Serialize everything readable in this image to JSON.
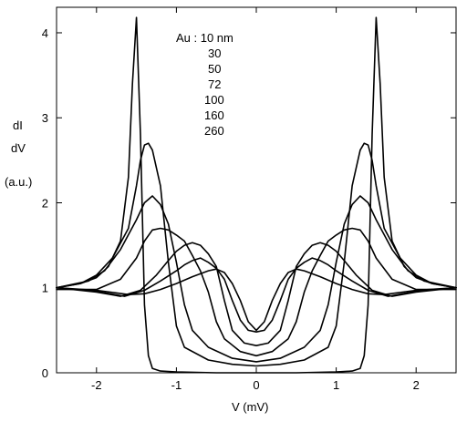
{
  "chart_data": {
    "type": "line",
    "xlabel": "V (mV)",
    "ylabel": [
      "dI",
      "dV",
      "(a.u.)"
    ],
    "xlim": [
      -2.5,
      2.5
    ],
    "ylim": [
      0,
      4.3
    ],
    "xticks": [
      -2,
      -1,
      0,
      1,
      2
    ],
    "yticks": [
      0,
      1,
      2,
      3,
      4
    ],
    "grid": false,
    "legend_title": "Au : 10 nm",
    "legend_entries": [
      "30",
      "50",
      "72",
      "100",
      "160",
      "260"
    ],
    "series": [
      {
        "name": "10 nm",
        "x": [
          0,
          0.5,
          1.0,
          1.2,
          1.3,
          1.35,
          1.4,
          1.45,
          1.5,
          1.55,
          1.6,
          1.7,
          1.85,
          2.0,
          2.2,
          2.5
        ],
        "y": [
          0.0,
          0.0,
          0.01,
          0.02,
          0.05,
          0.2,
          0.8,
          2.8,
          4.18,
          3.4,
          2.3,
          1.55,
          1.25,
          1.12,
          1.05,
          1.0
        ]
      },
      {
        "name": "30 nm",
        "x": [
          0,
          0.3,
          0.6,
          0.9,
          1.0,
          1.1,
          1.2,
          1.3,
          1.35,
          1.4,
          1.45,
          1.5,
          1.6,
          1.8,
          2.0,
          2.2,
          2.5
        ],
        "y": [
          0.08,
          0.1,
          0.15,
          0.3,
          0.55,
          1.3,
          2.2,
          2.62,
          2.7,
          2.68,
          2.5,
          2.2,
          1.7,
          1.35,
          1.15,
          1.05,
          1.0
        ]
      },
      {
        "name": "50 nm",
        "x": [
          0,
          0.3,
          0.6,
          0.8,
          0.9,
          1.0,
          1.1,
          1.2,
          1.3,
          1.4,
          1.5,
          1.7,
          1.9,
          2.1,
          2.5
        ],
        "y": [
          0.13,
          0.17,
          0.3,
          0.5,
          0.8,
          1.3,
          1.75,
          1.98,
          2.08,
          2.0,
          1.8,
          1.45,
          1.2,
          1.08,
          1.0
        ]
      },
      {
        "name": "72 nm",
        "x": [
          0,
          0.2,
          0.4,
          0.5,
          0.6,
          0.7,
          0.8,
          0.9,
          1.0,
          1.1,
          1.2,
          1.3,
          1.4,
          1.5,
          1.7,
          2.0,
          2.5
        ],
        "y": [
          0.2,
          0.25,
          0.4,
          0.6,
          0.95,
          1.2,
          1.38,
          1.55,
          1.62,
          1.68,
          1.7,
          1.68,
          1.55,
          1.35,
          1.1,
          0.98,
          0.98
        ]
      },
      {
        "name": "100 nm",
        "x": [
          0,
          0.15,
          0.3,
          0.4,
          0.5,
          0.6,
          0.7,
          0.8,
          0.9,
          1.0,
          1.1,
          1.25,
          1.45,
          1.7,
          2.0,
          2.5
        ],
        "y": [
          0.32,
          0.35,
          0.5,
          0.85,
          1.25,
          1.4,
          1.5,
          1.53,
          1.5,
          1.43,
          1.32,
          1.15,
          0.97,
          0.9,
          0.95,
          1.0
        ]
      },
      {
        "name": "160 nm",
        "x": [
          0,
          0.1,
          0.2,
          0.3,
          0.4,
          0.5,
          0.6,
          0.7,
          0.8,
          0.9,
          1.0,
          1.2,
          1.4,
          1.65,
          2.0,
          2.5
        ],
        "y": [
          0.48,
          0.5,
          0.62,
          0.85,
          1.1,
          1.23,
          1.3,
          1.35,
          1.32,
          1.27,
          1.2,
          1.08,
          0.97,
          0.9,
          0.96,
          1.0
        ]
      },
      {
        "name": "260 nm",
        "x": [
          0,
          0.1,
          0.2,
          0.3,
          0.4,
          0.5,
          0.6,
          0.8,
          1.0,
          1.2,
          1.4,
          1.6,
          2.0,
          2.5
        ],
        "y": [
          0.5,
          0.6,
          0.85,
          1.05,
          1.18,
          1.22,
          1.2,
          1.13,
          1.05,
          0.98,
          0.93,
          0.92,
          0.97,
          1.0
        ]
      }
    ]
  }
}
